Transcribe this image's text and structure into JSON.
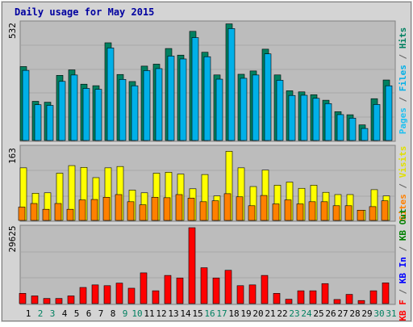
{
  "title": "Daily usage for May 2015",
  "colors": {
    "background": "#d4d4d4",
    "panel": "#bcbcbc",
    "title": "#0000a0",
    "hits": "#008060",
    "files": "#00b0e8",
    "pages": "#20c0f0",
    "visits": "#ffff00",
    "sites": "#ff8000",
    "kbin": "#0000ff",
    "kbout": "#008000",
    "kbf": "#ff0000",
    "weekend": "#008060",
    "weekday": "#000000"
  },
  "chart_data": [
    {
      "type": "bar",
      "panel": "top",
      "ylim": [
        0,
        532
      ],
      "ytick": "532",
      "legend": [
        "Pages",
        "Files",
        "Hits"
      ],
      "categories": [
        "1",
        "2",
        "3",
        "4",
        "5",
        "6",
        "7",
        "8",
        "9",
        "10",
        "11",
        "12",
        "13",
        "14",
        "15",
        "16",
        "17",
        "18",
        "19",
        "20",
        "21",
        "22",
        "23",
        "24",
        "25",
        "26",
        "27",
        "28",
        "29",
        "30",
        "31"
      ],
      "weekend_days": [
        2,
        3,
        9,
        10,
        16,
        17,
        23,
        24,
        30,
        31
      ],
      "series": [
        {
          "name": "Hits",
          "values": [
            336,
            178,
            174,
            296,
            321,
            256,
            249,
            444,
            300,
            268,
            338,
            347,
            418,
            388,
            496,
            401,
            298,
            530,
            301,
            316,
            415,
            298,
            226,
            221,
            208,
            183,
            131,
            117,
            71,
            190,
            275
          ]
        },
        {
          "name": "Files",
          "values": [
            326,
            170,
            167,
            276,
            305,
            244,
            240,
            428,
            285,
            256,
            325,
            334,
            391,
            378,
            475,
            388,
            286,
            516,
            290,
            305,
            401,
            281,
            212,
            213,
            199,
            175,
            125,
            109,
            62,
            171,
            256
          ]
        }
      ]
    },
    {
      "type": "bar",
      "panel": "middle",
      "ylim": [
        0,
        163
      ],
      "ytick": "163",
      "legend": [
        "Sites",
        "Visits"
      ],
      "categories": [
        "1",
        "2",
        "3",
        "4",
        "5",
        "6",
        "7",
        "8",
        "9",
        "10",
        "11",
        "12",
        "13",
        "14",
        "15",
        "16",
        "17",
        "18",
        "19",
        "20",
        "21",
        "22",
        "23",
        "24",
        "25",
        "26",
        "27",
        "28",
        "29",
        "30",
        "31"
      ],
      "series": [
        {
          "name": "Visits",
          "values": [
            118,
            61,
            62,
            106,
            123,
            119,
            96,
            118,
            121,
            68,
            62,
            106,
            108,
            104,
            71,
            103,
            55,
            155,
            118,
            76,
            113,
            79,
            86,
            72,
            79,
            63,
            58,
            58,
            23,
            69,
            55
          ]
        },
        {
          "name": "Sites",
          "values": [
            30,
            38,
            25,
            38,
            25,
            46,
            47,
            52,
            58,
            42,
            35,
            52,
            51,
            58,
            50,
            42,
            44,
            60,
            53,
            33,
            56,
            37,
            46,
            37,
            42,
            42,
            33,
            33,
            23,
            31,
            44
          ]
        }
      ]
    },
    {
      "type": "bar",
      "panel": "bottom",
      "ylim": [
        0,
        29625
      ],
      "ytick": "29625",
      "legend": [
        "KB F",
        "KB In",
        "KB Out"
      ],
      "categories": [
        "1",
        "2",
        "3",
        "4",
        "5",
        "6",
        "7",
        "8",
        "9",
        "10",
        "11",
        "12",
        "13",
        "14",
        "15",
        "16",
        "17",
        "18",
        "19",
        "20",
        "21",
        "22",
        "23",
        "24",
        "25",
        "26",
        "27",
        "28",
        "29",
        "30",
        "31"
      ],
      "series": [
        {
          "name": "KB F",
          "values": [
            4000,
            3000,
            2000,
            2000,
            3000,
            6300,
            7300,
            7000,
            8000,
            6000,
            12000,
            5000,
            11000,
            10000,
            29625,
            14000,
            10000,
            13000,
            7000,
            7300,
            11000,
            4000,
            1700,
            5000,
            5000,
            7800,
            1600,
            3600,
            1200,
            5000,
            8100
          ]
        }
      ]
    }
  ]
}
